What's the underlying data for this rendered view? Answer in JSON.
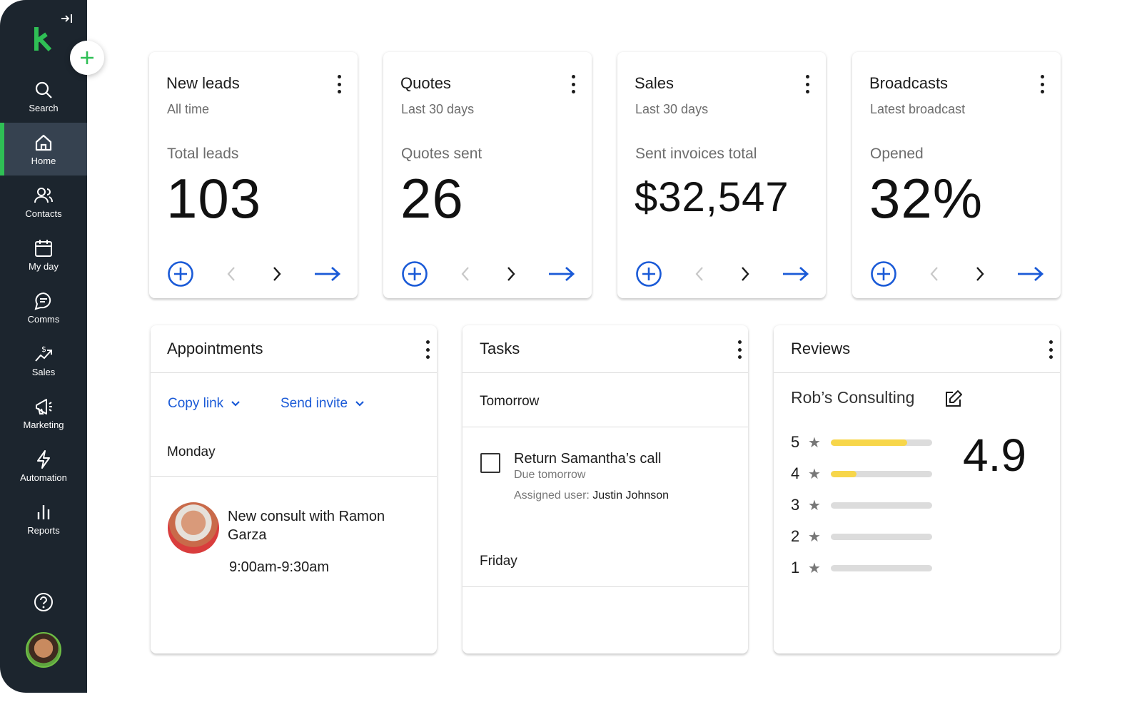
{
  "sidebar": {
    "items": [
      {
        "label": "Search",
        "icon": "search-icon"
      },
      {
        "label": "Home",
        "icon": "home-icon"
      },
      {
        "label": "Contacts",
        "icon": "contacts-icon"
      },
      {
        "label": "My day",
        "icon": "calendar-icon"
      },
      {
        "label": "Comms",
        "icon": "chat-icon"
      },
      {
        "label": "Sales",
        "icon": "sales-icon"
      },
      {
        "label": "Marketing",
        "icon": "megaphone-icon"
      },
      {
        "label": "Automation",
        "icon": "lightning-icon"
      },
      {
        "label": "Reports",
        "icon": "bar-chart-icon"
      }
    ],
    "active": "Home"
  },
  "metrics": [
    {
      "title": "New leads",
      "subtitle": "All time",
      "label": "Total leads",
      "value": "103"
    },
    {
      "title": "Quotes",
      "subtitle": "Last 30 days",
      "label": "Quotes sent",
      "value": "26"
    },
    {
      "title": "Sales",
      "subtitle": "Last 30 days",
      "label": "Sent invoices total",
      "value": "$32,547"
    },
    {
      "title": "Broadcasts",
      "subtitle": "Latest broadcast",
      "label": "Opened",
      "value": "32%"
    }
  ],
  "appointments": {
    "title": "Appointments",
    "copy_link": "Copy link",
    "send_invite": "Send invite",
    "day": "Monday",
    "event_title": "New consult with Ramon Garza",
    "event_time": "9:00am-9:30am"
  },
  "tasks": {
    "title": "Tasks",
    "group1": "Tomorrow",
    "task_title": "Return Samantha’s call",
    "task_due": "Due tomorrow",
    "assigned_prefix": "Assigned user:",
    "assigned_user": "Justin Johnson",
    "group2": "Friday"
  },
  "reviews": {
    "title": "Reviews",
    "business": "Rob’s Consulting",
    "average": "4.9",
    "ratings": [
      {
        "stars": "5",
        "fraction": 0.75
      },
      {
        "stars": "4",
        "fraction": 0.25
      },
      {
        "stars": "3",
        "fraction": 0
      },
      {
        "stars": "2",
        "fraction": 0
      },
      {
        "stars": "1",
        "fraction": 0
      }
    ]
  },
  "colors": {
    "accent": "#1a5ad7",
    "brand_green": "#2fbf55",
    "sidebar": "#1c252e",
    "rating_bar": "#f7d64a"
  }
}
